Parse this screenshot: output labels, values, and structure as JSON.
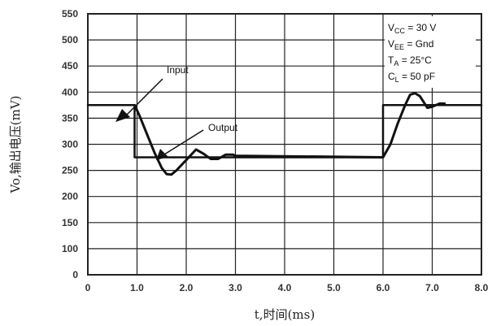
{
  "chart_data": {
    "type": "line",
    "xlabel": "t,时间(ms)",
    "ylabel": "Vo,输出电压(mV)",
    "xlim": [
      0,
      8.0
    ],
    "ylim": [
      0,
      550
    ],
    "x_ticks": [
      "0",
      "1.0",
      "2.0",
      "3.0",
      "4.0",
      "5.0",
      "6.0",
      "7.0",
      "8.0"
    ],
    "y_ticks": [
      "0",
      "100",
      "150",
      "200",
      "250",
      "300",
      "350",
      "400",
      "450",
      "500",
      "550"
    ],
    "grid": true,
    "series": [
      {
        "name": "Input",
        "x": [
          0,
          0.95,
          0.95,
          6.0,
          6.0,
          8.0
        ],
        "y": [
          375,
          375,
          275,
          275,
          375,
          375
        ]
      },
      {
        "name": "Output",
        "x": [
          0.95,
          1.05,
          1.2,
          1.35,
          1.5,
          1.6,
          1.7,
          1.8,
          2.0,
          2.2,
          2.35,
          2.5,
          2.65,
          2.8,
          2.95,
          3.0,
          6.0,
          6.15,
          6.3,
          6.45,
          6.55,
          6.65,
          6.75,
          6.9,
          7.0,
          7.15,
          7.25
        ],
        "y": [
          375,
          355,
          320,
          285,
          255,
          243,
          242,
          250,
          270,
          290,
          282,
          272,
          272,
          280,
          280,
          278,
          275,
          300,
          340,
          375,
          395,
          398,
          392,
          370,
          372,
          378,
          378
        ]
      }
    ],
    "annotations": {
      "input_label": "Input",
      "output_label": "Output",
      "conditions": [
        "VCC = 30 V",
        "VEE = Gnd",
        "TA = 25°C",
        "CL = 50 pF"
      ]
    }
  }
}
